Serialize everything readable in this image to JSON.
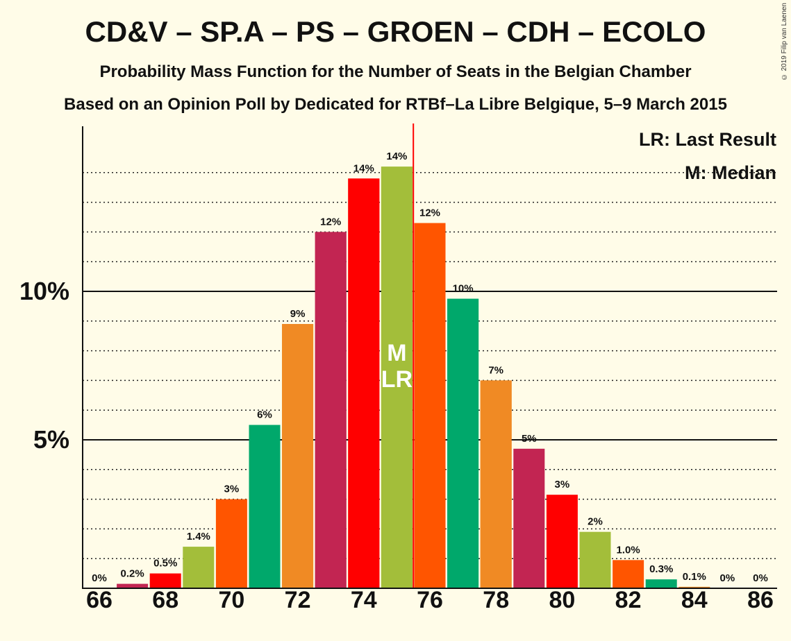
{
  "title": "CD&V – SP.A – PS – GROEN – CDH – ECOLO",
  "subtitle": "Probability Mass Function for the Number of Seats in the Belgian Chamber",
  "subtitle2": "Based on an Opinion Poll by Dedicated for RTBf–La Libre Belgique, 5–9 March 2015",
  "copyright": "© 2019 Filip van Laenen",
  "legend": {
    "last_result": "LR: Last Result",
    "median": "M: Median"
  },
  "colors": {
    "cdv": "#f08a24",
    "spa": "#ff0000",
    "ps": "#ff5500",
    "groen": "#a3be3a",
    "cdh": "#c22552",
    "ecolo": "#00a86b",
    "last_result_line": "#ff0000"
  },
  "chart_data": {
    "type": "bar",
    "xlabel": "",
    "ylabel": "",
    "ylim": [
      0,
      15.5
    ],
    "y_ticks": [
      {
        "value": 5,
        "label": "5%"
      },
      {
        "value": 10,
        "label": "10%"
      }
    ],
    "x_ticks": [
      66,
      68,
      70,
      72,
      74,
      76,
      78,
      80,
      82,
      84,
      86
    ],
    "median_seat": 75,
    "last_result_seat": 75,
    "last_result_line_seat": 75.5,
    "marker_labels": {
      "median": "M",
      "last_result": "LR"
    },
    "bars": [
      {
        "seat": 66,
        "value": 0.0,
        "label": "0%",
        "color": "cdv"
      },
      {
        "seat": 67,
        "value": 0.15,
        "label": "0.2%",
        "color": "cdh"
      },
      {
        "seat": 68,
        "value": 0.5,
        "label": "0.5%",
        "color": "spa"
      },
      {
        "seat": 69,
        "value": 1.4,
        "label": "1.4%",
        "color": "groen"
      },
      {
        "seat": 70,
        "value": 3.0,
        "label": "3%",
        "color": "ps"
      },
      {
        "seat": 71,
        "value": 5.5,
        "label": "6%",
        "color": "ecolo"
      },
      {
        "seat": 72,
        "value": 8.9,
        "label": "9%",
        "color": "cdv"
      },
      {
        "seat": 73,
        "value": 12.0,
        "label": "12%",
        "color": "cdh"
      },
      {
        "seat": 74,
        "value": 13.8,
        "label": "14%",
        "color": "spa"
      },
      {
        "seat": 75,
        "value": 14.2,
        "label": "14%",
        "color": "groen"
      },
      {
        "seat": 76,
        "value": 12.3,
        "label": "12%",
        "color": "ps"
      },
      {
        "seat": 77,
        "value": 9.75,
        "label": "10%",
        "color": "ecolo"
      },
      {
        "seat": 78,
        "value": 7.0,
        "label": "7%",
        "color": "cdv"
      },
      {
        "seat": 79,
        "value": 4.7,
        "label": "5%",
        "color": "cdh"
      },
      {
        "seat": 80,
        "value": 3.15,
        "label": "3%",
        "color": "spa"
      },
      {
        "seat": 81,
        "value": 1.9,
        "label": "2%",
        "color": "groen"
      },
      {
        "seat": 82,
        "value": 0.95,
        "label": "1.0%",
        "color": "ps"
      },
      {
        "seat": 83,
        "value": 0.3,
        "label": "0.3%",
        "color": "ecolo"
      },
      {
        "seat": 84,
        "value": 0.05,
        "label": "0.1%",
        "color": "cdv"
      },
      {
        "seat": 85,
        "value": 0.0,
        "label": "0%",
        "color": "cdh"
      },
      {
        "seat": 86,
        "value": 0.0,
        "label": "0%",
        "color": "spa"
      }
    ]
  }
}
